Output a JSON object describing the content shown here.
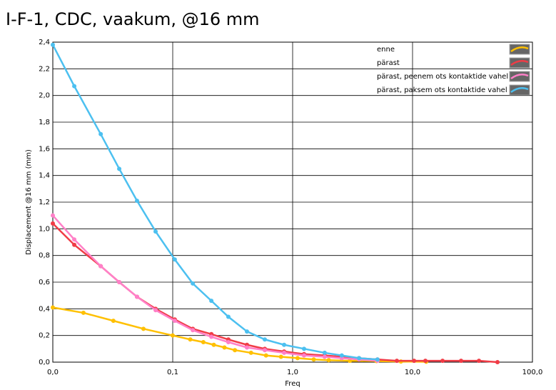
{
  "chart_data": {
    "type": "line",
    "title": "I-F-1, CDC, vaakum, @16 mm",
    "x_label": "Freq",
    "y_label": "Displacement @16 mm (mm)",
    "x_scale": "log",
    "grid": true,
    "legend_position": "upper right",
    "xlim": [
      0.01,
      100
    ],
    "xticks": [
      {
        "value": 0.01,
        "label": "0,0"
      },
      {
        "value": 0.1,
        "label": "0,1"
      },
      {
        "value": 1,
        "label": "1,0"
      },
      {
        "value": 10,
        "label": "10,0"
      },
      {
        "value": 100,
        "label": "100,0"
      }
    ],
    "ylim": [
      0,
      2.4
    ],
    "yticks": [
      {
        "value": 0,
        "label": "0,0"
      },
      {
        "value": 0.2,
        "label": "0,2"
      },
      {
        "value": 0.4,
        "label": "0,4"
      },
      {
        "value": 0.6,
        "label": "0,6"
      },
      {
        "value": 0.8,
        "label": "0,8"
      },
      {
        "value": 1.0,
        "label": "1,0"
      },
      {
        "value": 1.2,
        "label": "1,2"
      },
      {
        "value": 1.4,
        "label": "1,4"
      },
      {
        "value": 1.6,
        "label": "1,6"
      },
      {
        "value": 1.8,
        "label": "1,8"
      },
      {
        "value": 2.0,
        "label": "2,0"
      },
      {
        "value": 2.2,
        "label": "2,2"
      },
      {
        "value": 2.4,
        "label": "2,4"
      }
    ],
    "series": [
      {
        "name": "enne",
        "color": "#ffc000",
        "x": [
          0.01,
          0.018,
          0.032,
          0.057,
          0.1,
          0.14,
          0.18,
          0.22,
          0.27,
          0.33,
          0.45,
          0.6,
          0.8,
          1.1,
          1.5,
          2,
          3,
          5,
          8,
          13
        ],
        "values": [
          0.41,
          0.37,
          0.31,
          0.25,
          0.2,
          0.17,
          0.15,
          0.13,
          0.11,
          0.09,
          0.07,
          0.05,
          0.04,
          0.03,
          0.02,
          0.015,
          0.01,
          0.008,
          0.005,
          0.003
        ]
      },
      {
        "name": "pärast",
        "color": "#f03c46",
        "x": [
          0.01,
          0.0151,
          0.0251,
          0.0358,
          0.0504,
          0.072,
          0.104,
          0.147,
          0.21,
          0.291,
          0.416,
          0.586,
          0.849,
          1.245,
          1.85,
          2.57,
          3.58,
          5.1,
          7.4,
          10.3,
          12.8,
          17.8,
          25.4,
          35.8,
          51.1
        ],
        "values": [
          1.04,
          0.88,
          0.72,
          0.6,
          0.49,
          0.4,
          0.32,
          0.25,
          0.21,
          0.17,
          0.13,
          0.1,
          0.08,
          0.06,
          0.05,
          0.04,
          0.03,
          0.02,
          0.01,
          0.01,
          0.01,
          0.01,
          0.01,
          0.01,
          0.0
        ]
      },
      {
        "name": "pärast, peenem ots kontaktide vahel",
        "color": "#ff80c8",
        "x": [
          0.01,
          0.0151,
          0.0251,
          0.0358,
          0.0504,
          0.072,
          0.104,
          0.147,
          0.21,
          0.291,
          0.416,
          0.586,
          0.849,
          1.245,
          1.85,
          2.57,
          3.58,
          5.1
        ],
        "values": [
          1.1,
          0.92,
          0.72,
          0.6,
          0.49,
          0.39,
          0.31,
          0.24,
          0.19,
          0.15,
          0.11,
          0.09,
          0.07,
          0.05,
          0.04,
          0.03,
          0.02,
          0.01
        ]
      },
      {
        "name": "pärast, paksem ots kontaktide vahel",
        "color": "#4cc0f0",
        "x": [
          0.01,
          0.0151,
          0.0251,
          0.0358,
          0.0504,
          0.072,
          0.104,
          0.147,
          0.21,
          0.291,
          0.416,
          0.586,
          0.849,
          1.245,
          1.85,
          2.57,
          3.58,
          5.1
        ],
        "values": [
          2.38,
          2.07,
          1.71,
          1.45,
          1.21,
          0.98,
          0.77,
          0.59,
          0.46,
          0.34,
          0.23,
          0.17,
          0.13,
          0.1,
          0.07,
          0.05,
          0.03,
          0.02
        ]
      }
    ]
  }
}
